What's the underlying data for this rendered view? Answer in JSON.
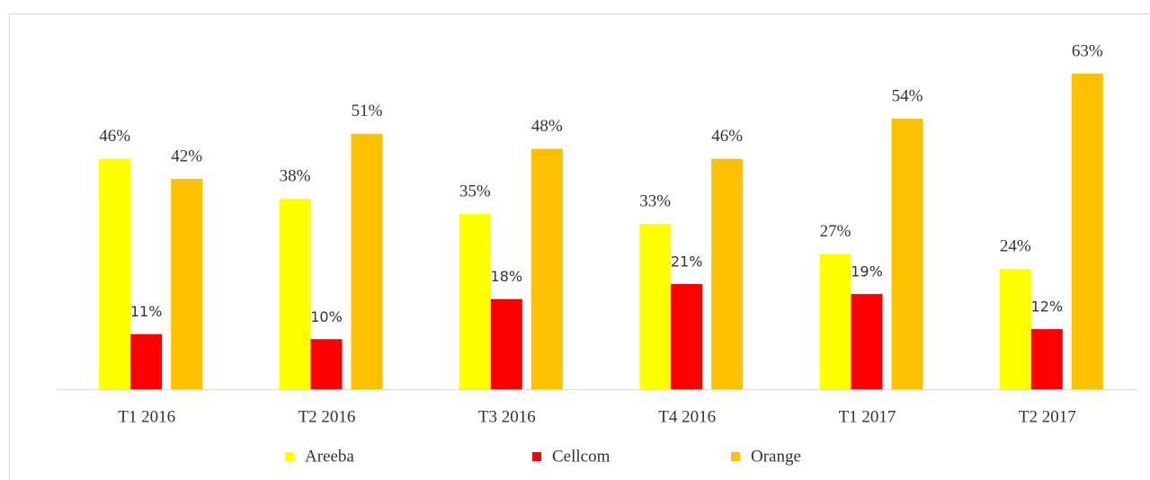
{
  "chart_data": {
    "type": "bar",
    "categories": [
      "T1 2016",
      "T2 2016",
      "T3 2016",
      "T4 2016",
      "T1 2017",
      "T2 2017"
    ],
    "series": [
      {
        "name": "Areeba",
        "color": "#FFFF00",
        "values": [
          46,
          38,
          35,
          33,
          27,
          24
        ],
        "value_labels": [
          "46%",
          "38%",
          "35%",
          "33%",
          "27%",
          "24%"
        ]
      },
      {
        "name": "Cellcom",
        "color": "#FF0000",
        "values": [
          11,
          10,
          18,
          21,
          19,
          12
        ],
        "value_labels": [
          "11%",
          "10%",
          "18%",
          "21%",
          "19%",
          "12%"
        ]
      },
      {
        "name": "Orange",
        "color": "#FFC000",
        "values": [
          42,
          51,
          48,
          46,
          54,
          63
        ],
        "value_labels": [
          "42%",
          "51%",
          "48%",
          "46%",
          "54%",
          "63%"
        ]
      }
    ],
    "ylim": [
      0,
      70
    ],
    "legend": "bottom"
  }
}
